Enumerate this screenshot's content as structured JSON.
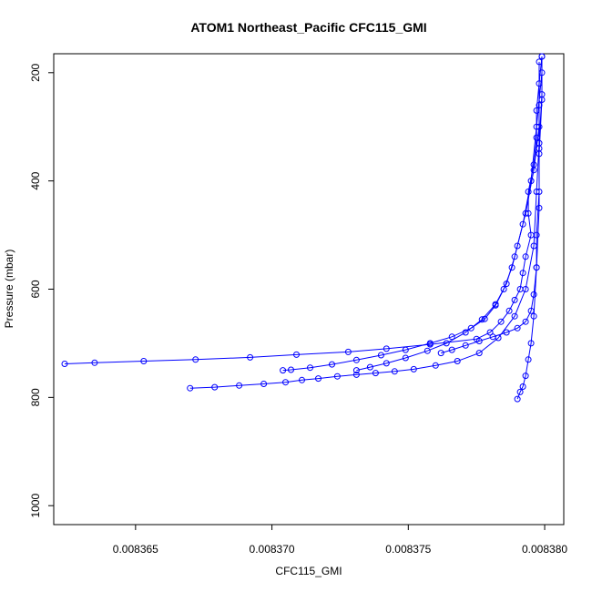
{
  "chart_data": {
    "type": "line",
    "title": "ATOM1 Northeast_Pacific CFC115_GMI",
    "xlabel": "CFC115_GMI",
    "ylabel": "Pressure (mbar)",
    "xlim": [
      0.008362,
      0.0083807
    ],
    "ylim": [
      1035,
      165
    ],
    "y_inverted": true,
    "grid": false,
    "series_color": "#0000ff",
    "marker": "open-circle",
    "x_ticks": [
      {
        "value": 0.008365,
        "label": "0.008365"
      },
      {
        "value": 0.00837,
        "label": "0.008370"
      },
      {
        "value": 0.008375,
        "label": "0.008375"
      },
      {
        "value": 0.00838,
        "label": "0.008380"
      }
    ],
    "y_ticks": [
      {
        "value": 200,
        "label": "200"
      },
      {
        "value": 400,
        "label": "400"
      },
      {
        "value": 600,
        "label": "600"
      },
      {
        "value": 800,
        "label": "800"
      },
      {
        "value": 1000,
        "label": "1000"
      }
    ],
    "series": [
      {
        "x": [
          0.0083799,
          0.0083798,
          0.0083797,
          0.0083797,
          0.0083796,
          0.0083794,
          0.0083794,
          0.0083795,
          0.0083793,
          0.0083792,
          0.0083791,
          0.0083789,
          0.0083787,
          0.0083784,
          0.008378,
          0.0083775,
          0.0083758,
          0.0083742,
          0.0083728,
          0.0083709,
          0.0083692,
          0.0083672,
          0.0083653,
          0.0083635,
          0.0083624
        ],
        "y": [
          170,
          220,
          270,
          320,
          370,
          420,
          460,
          500,
          540,
          570,
          600,
          620,
          640,
          660,
          680,
          692,
          702,
          710,
          716,
          721,
          726,
          730,
          733,
          736,
          738
        ]
      },
      {
        "x": [
          0.0083799,
          0.0083798,
          0.0083797,
          0.0083796,
          0.0083793,
          0.0083789,
          0.0083783,
          0.0083776,
          0.0083768,
          0.008376,
          0.0083752,
          0.0083745,
          0.0083738,
          0.0083731,
          0.0083724,
          0.0083717,
          0.0083711,
          0.0083705,
          0.0083697,
          0.0083688,
          0.0083679,
          0.008367
        ],
        "y": [
          240,
          330,
          420,
          520,
          600,
          650,
          690,
          718,
          733,
          741,
          748,
          752,
          755,
          758,
          761,
          765,
          768,
          772,
          775,
          778,
          781,
          783
        ]
      },
      {
        "x": [
          0.0083798,
          0.0083796,
          0.0083793,
          0.008379,
          0.0083788,
          0.0083785,
          0.0083782,
          0.0083778,
          0.0083773,
          0.0083766,
          0.0083758,
          0.0083749,
          0.008374,
          0.0083731,
          0.0083722,
          0.0083714,
          0.0083707,
          0.0083704
        ],
        "y": [
          300,
          380,
          460,
          520,
          560,
          600,
          630,
          655,
          672,
          688,
          700,
          712,
          722,
          731,
          739,
          745,
          749,
          750
        ]
      },
      {
        "x": [
          0.0083799,
          0.0083797,
          0.0083795,
          0.0083792,
          0.0083789,
          0.0083786,
          0.0083782,
          0.0083777,
          0.0083771,
          0.0083764,
          0.0083757,
          0.0083749,
          0.0083742,
          0.0083736,
          0.0083731
        ],
        "y": [
          200,
          300,
          400,
          480,
          540,
          590,
          628,
          656,
          680,
          700,
          714,
          727,
          737,
          744,
          750
        ]
      },
      {
        "x": [
          0.008379,
          0.0083791,
          0.0083792,
          0.0083793,
          0.0083794,
          0.0083795,
          0.0083796,
          0.0083797,
          0.0083798,
          0.0083798,
          0.0083799,
          0.0083799
        ],
        "y": [
          803,
          790,
          780,
          760,
          730,
          700,
          650,
          560,
          450,
          350,
          250,
          170
        ]
      },
      {
        "x": [
          0.0083798,
          0.0083798,
          0.0083798,
          0.0083798,
          0.0083797,
          0.0083797,
          0.0083796,
          0.0083795,
          0.0083793,
          0.008379,
          0.0083786,
          0.0083781,
          0.0083776,
          0.0083771,
          0.0083766,
          0.0083762
        ],
        "y": [
          180,
          260,
          340,
          420,
          500,
          560,
          610,
          640,
          660,
          672,
          680,
          688,
          696,
          704,
          712,
          718
        ]
      }
    ]
  }
}
